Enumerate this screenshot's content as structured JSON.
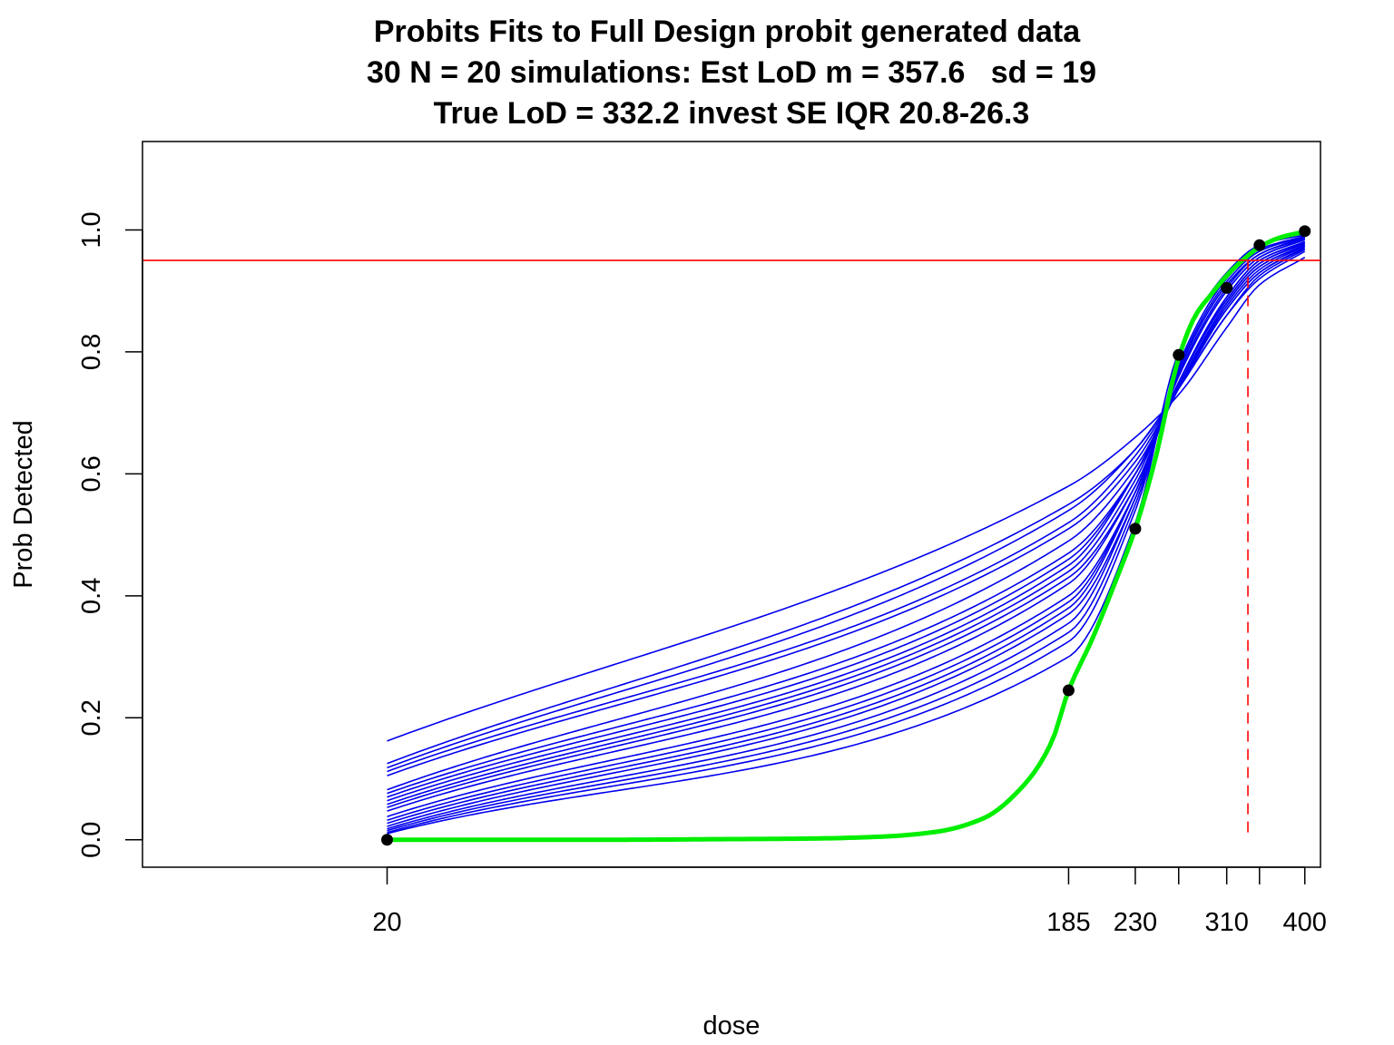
{
  "chart_data": {
    "type": "line",
    "title": "Probits Fits to Full Design probit generated data",
    "subtitle": "30 N = 20 simulations: Est LoD m = 357.6   sd = 19",
    "subtitle2": "True LoD = 332.2 invest SE IQR 20.8-26.3",
    "xlabel": "dose",
    "ylabel": "Prob Detected",
    "xlim": [
      9,
      421
    ],
    "ylim": [
      -0.045,
      1.145
    ],
    "x_ticks": [
      20,
      185,
      230,
      265,
      310,
      345,
      400
    ],
    "x_tick_labels": [
      "20",
      "185",
      "230",
      "",
      "310",
      "",
      "400"
    ],
    "y_ticks": [
      0.0,
      0.2,
      0.4,
      0.6,
      0.8,
      1.0
    ],
    "y_tick_labels": [
      "0.0",
      "0.2",
      "0.4",
      "0.6",
      "0.8",
      "1.0"
    ],
    "scale_note": "x axis is logarithmic",
    "hline": {
      "y": 0.95,
      "color": "#ff0000"
    },
    "vline": {
      "x": 332.2,
      "y_from": 0.012,
      "y_to": 0.95,
      "color": "#ff0000",
      "dashed": true
    },
    "true_curve": {
      "color": "#00ee00",
      "x": [
        20,
        40,
        60,
        80,
        100,
        120,
        140,
        160,
        175,
        185,
        200,
        215,
        230,
        245,
        265,
        280,
        295,
        310,
        330,
        345,
        370,
        400
      ],
      "y": [
        0.0,
        0.0,
        0.001,
        0.002,
        0.005,
        0.013,
        0.035,
        0.09,
        0.16,
        0.245,
        0.33,
        0.42,
        0.51,
        0.62,
        0.79,
        0.86,
        0.895,
        0.925,
        0.955,
        0.972,
        0.988,
        0.997
      ]
    },
    "points": {
      "color": "#000000",
      "x": [
        20,
        185,
        230,
        265,
        310,
        345,
        400
      ],
      "y": [
        0.0,
        0.245,
        0.51,
        0.795,
        0.905,
        0.975,
        0.998
      ]
    },
    "sim_curves": {
      "color": "#0000ee",
      "x": [
        20,
        185,
        230,
        265,
        310,
        345,
        400
      ],
      "series": [
        {
          "values": [
            0.162,
            0.58,
            0.66,
            0.73,
            0.84,
            0.91,
            0.955
          ]
        },
        {
          "values": [
            0.125,
            0.55,
            0.64,
            0.74,
            0.86,
            0.92,
            0.965
          ]
        },
        {
          "values": [
            0.118,
            0.54,
            0.64,
            0.74,
            0.86,
            0.925,
            0.968
          ]
        },
        {
          "values": [
            0.112,
            0.52,
            0.63,
            0.74,
            0.87,
            0.93,
            0.97
          ]
        },
        {
          "values": [
            0.105,
            0.51,
            0.62,
            0.74,
            0.87,
            0.93,
            0.972
          ]
        },
        {
          "values": [
            0.082,
            0.49,
            0.61,
            0.74,
            0.875,
            0.935,
            0.974
          ]
        },
        {
          "values": [
            0.076,
            0.47,
            0.6,
            0.74,
            0.88,
            0.94,
            0.975
          ]
        },
        {
          "values": [
            0.07,
            0.46,
            0.6,
            0.745,
            0.88,
            0.94,
            0.976
          ]
        },
        {
          "values": [
            0.064,
            0.45,
            0.6,
            0.75,
            0.885,
            0.945,
            0.978
          ]
        },
        {
          "values": [
            0.058,
            0.44,
            0.59,
            0.75,
            0.885,
            0.945,
            0.979
          ]
        },
        {
          "values": [
            0.053,
            0.43,
            0.58,
            0.75,
            0.89,
            0.95,
            0.98
          ]
        },
        {
          "values": [
            0.047,
            0.42,
            0.58,
            0.75,
            0.89,
            0.95,
            0.981
          ]
        },
        {
          "values": [
            0.038,
            0.4,
            0.57,
            0.76,
            0.9,
            0.955,
            0.984
          ]
        },
        {
          "values": [
            0.032,
            0.39,
            0.57,
            0.76,
            0.9,
            0.955,
            0.985
          ]
        },
        {
          "values": [
            0.027,
            0.38,
            0.57,
            0.765,
            0.905,
            0.96,
            0.986
          ]
        },
        {
          "values": [
            0.022,
            0.37,
            0.56,
            0.77,
            0.91,
            0.96,
            0.987
          ]
        },
        {
          "values": [
            0.018,
            0.355,
            0.56,
            0.77,
            0.91,
            0.96,
            0.988
          ]
        },
        {
          "values": [
            0.015,
            0.34,
            0.55,
            0.775,
            0.915,
            0.965,
            0.989
          ]
        },
        {
          "values": [
            0.012,
            0.325,
            0.54,
            0.78,
            0.92,
            0.968,
            0.99
          ]
        },
        {
          "values": [
            0.01,
            0.3,
            0.52,
            0.8,
            0.93,
            0.975,
            0.992
          ]
        }
      ]
    }
  }
}
